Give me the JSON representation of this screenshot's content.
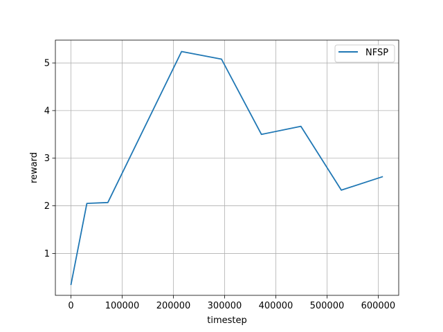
{
  "chart_data": {
    "type": "line",
    "title": "",
    "xlabel": "timestep",
    "ylabel": "reward",
    "xlim": [
      -30500,
      640000
    ],
    "ylim": [
      0.12,
      5.48
    ],
    "xticks": [
      0,
      100000,
      200000,
      300000,
      400000,
      500000,
      600000
    ],
    "xtick_labels": [
      "0",
      "100000",
      "200000",
      "300000",
      "400000",
      "500000",
      "600000"
    ],
    "yticks": [
      1,
      2,
      3,
      4,
      5
    ],
    "ytick_labels": [
      "1",
      "2",
      "3",
      "4",
      "5"
    ],
    "grid": true,
    "legend_position": "top-right",
    "series": [
      {
        "name": "NFSP",
        "color": "#1f77b4",
        "x": [
          0,
          31000,
          72000,
          216000,
          294000,
          372000,
          449000,
          528000,
          608000
        ],
        "y": [
          0.35,
          2.05,
          2.07,
          5.24,
          5.08,
          3.5,
          3.67,
          2.33,
          2.61
        ]
      }
    ]
  },
  "colors": {
    "grid": "#b0b0b0",
    "axes": "#000000"
  }
}
